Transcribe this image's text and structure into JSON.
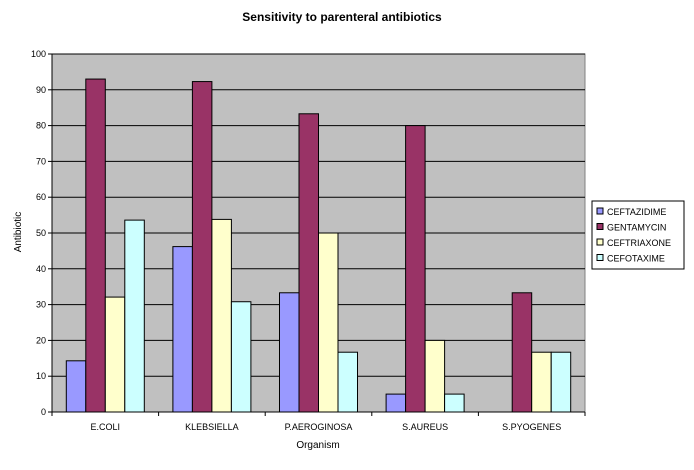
{
  "chart_data": {
    "type": "bar",
    "title": "Sensitivity to parenteral antibiotics",
    "xlabel": "Organism",
    "ylabel": "Antibiotic",
    "ylim": [
      0,
      100
    ],
    "yticks": [
      0,
      10,
      20,
      30,
      40,
      50,
      60,
      70,
      80,
      90,
      100
    ],
    "grid": true,
    "legend_position": "right",
    "plot_background": "#c0c0c0",
    "categories": [
      "E.COLI",
      "KLEBSIELLA",
      "P.AEROGINOSA",
      "S.AUREUS",
      "S.PYOGENES"
    ],
    "series": [
      {
        "name": "CEFTAZIDIME",
        "color": "#9999ff",
        "values": [
          14.3,
          46.2,
          33.3,
          5,
          0
        ]
      },
      {
        "name": "GENTAMYCIN",
        "color": "#993366",
        "values": [
          93,
          92.3,
          83.3,
          80,
          33.3
        ]
      },
      {
        "name": "CEFTRIAXONE",
        "color": "#ffffcc",
        "values": [
          32.1,
          53.8,
          50,
          20,
          16.7
        ]
      },
      {
        "name": "CEFOTAXIME",
        "color": "#ccffff",
        "values": [
          53.6,
          30.8,
          16.7,
          5,
          16.7
        ]
      }
    ]
  }
}
